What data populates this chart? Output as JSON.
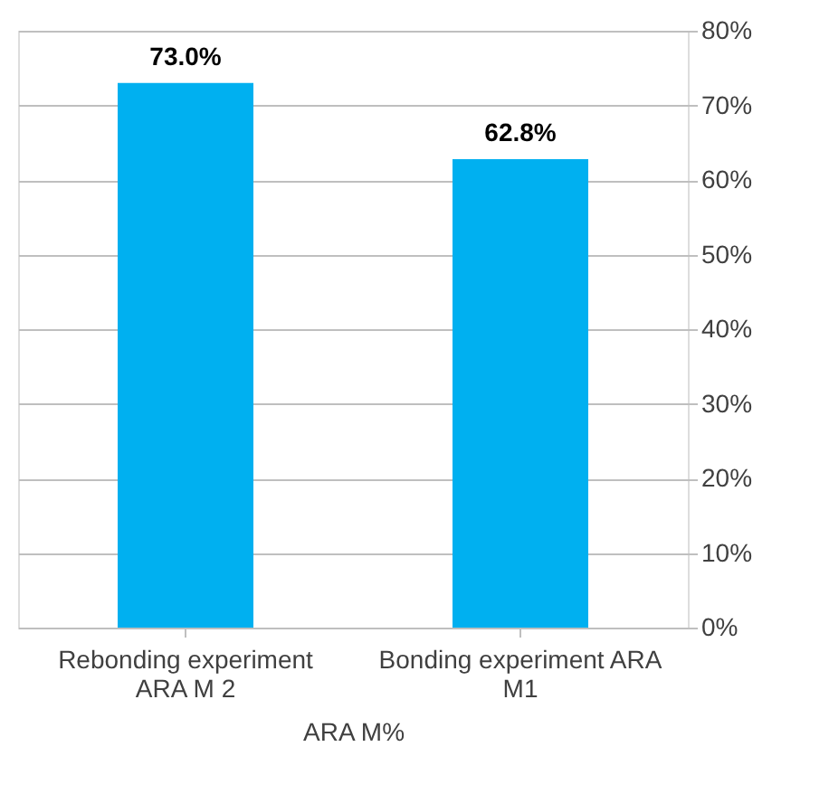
{
  "chart_data": {
    "type": "bar",
    "categories": [
      "Rebonding experiment ARA M 2",
      "Bonding  experiment ARA M1"
    ],
    "values": [
      73.0,
      62.8
    ],
    "value_labels": [
      "73.0%",
      "62.8%"
    ],
    "color": "#00b0f0",
    "xlabel": "ARA M%",
    "ylim": [
      0,
      80
    ],
    "yticks": [
      {
        "value": 0,
        "label": "0%"
      },
      {
        "value": 10,
        "label": "10%"
      },
      {
        "value": 20,
        "label": "20%"
      },
      {
        "value": 30,
        "label": "30%"
      },
      {
        "value": 40,
        "label": "40%"
      },
      {
        "value": 50,
        "label": "50%"
      },
      {
        "value": 60,
        "label": "60%"
      },
      {
        "value": 70,
        "label": "70%"
      },
      {
        "value": 80,
        "label": "80%"
      }
    ],
    "grid": "y"
  }
}
